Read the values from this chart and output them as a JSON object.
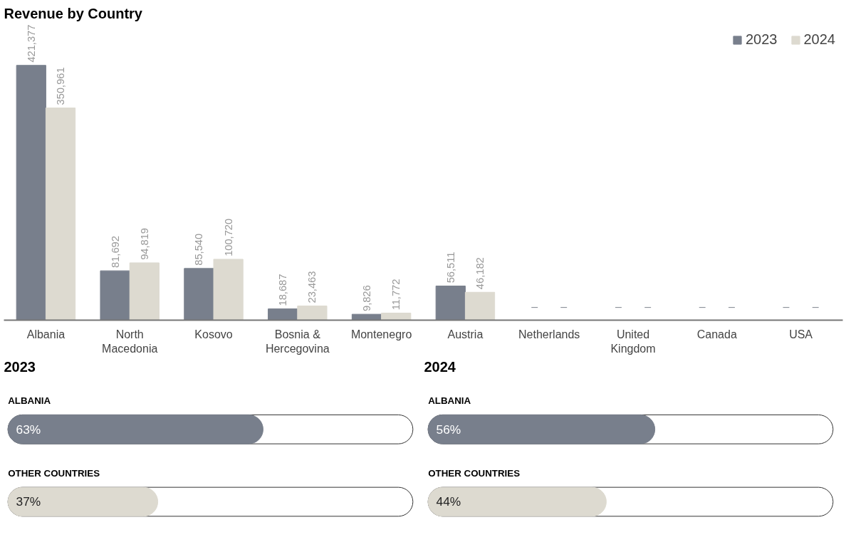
{
  "chart_data": [
    {
      "type": "bar",
      "title": "Revenue by Country",
      "categories": [
        "Albania",
        "North\nMacedonia",
        "Kosovo",
        "Bosnia &\nHercegovina",
        "Montenegro",
        "Austria",
        "Netherlands",
        "United\nKingdom",
        "Canada",
        "USA"
      ],
      "series": [
        {
          "name": "2023",
          "color": "#787f8c",
          "values": [
            421377,
            81692,
            85540,
            18687,
            9826,
            56511,
            null,
            null,
            null,
            null
          ],
          "value_labels": [
            "421,377",
            "81,692",
            "85,540",
            "18,687",
            "9,826",
            "56,511",
            "–",
            "–",
            "–",
            "–"
          ]
        },
        {
          "name": "2024",
          "color": "#dddad0",
          "values": [
            350961,
            94819,
            100720,
            23463,
            11772,
            46182,
            null,
            null,
            null,
            null
          ],
          "value_labels": [
            "350,961",
            "94,819",
            "100,720",
            "23,463",
            "11,772",
            "46,182",
            "–",
            "–",
            "–",
            "–"
          ]
        }
      ],
      "legend": "top right",
      "grid": false
    },
    {
      "type": "bar",
      "orientation": "horizontal",
      "title": "2023",
      "categories": [
        "ALBANIA",
        "OTHER COUNTRIES"
      ],
      "values": [
        63,
        37
      ],
      "colors": [
        "#787f8c",
        "#dddad0"
      ],
      "value_labels": [
        "63%",
        "37%"
      ],
      "xlim": [
        0,
        100
      ],
      "tick_labels": false
    },
    {
      "type": "bar",
      "orientation": "horizontal",
      "title": "2024",
      "categories": [
        "ALBANIA",
        "OTHER COUNTRIES"
      ],
      "values": [
        56,
        44
      ],
      "colors": [
        "#787f8c",
        "#dddad0"
      ],
      "value_labels": [
        "56%",
        "44%"
      ],
      "xlim": [
        0,
        100
      ],
      "tick_labels": false
    }
  ]
}
